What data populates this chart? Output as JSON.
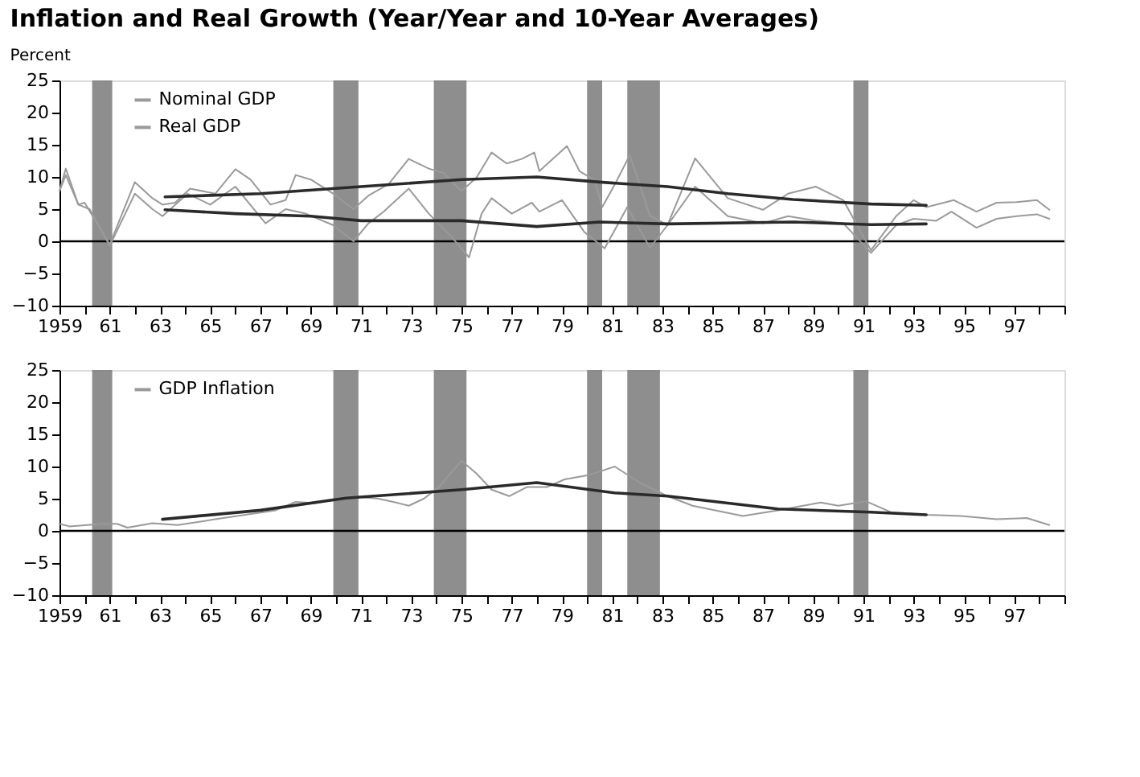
{
  "chart_data": [
    {
      "type": "line",
      "title": "Inflation and Real Growth (Year/Year and 10-Year Averages)",
      "ylabel": "Percent",
      "xlim": [
        1959,
        1999
      ],
      "xticks": [
        1959,
        {
          "value": 1960,
          "label": null
        },
        {
          "value": 1961,
          "label": "61"
        },
        {
          "value": 1962,
          "label": null
        },
        {
          "value": 1963,
          "label": "63"
        },
        {
          "value": 1964,
          "label": null
        },
        {
          "value": 1965,
          "label": "65"
        },
        {
          "value": 1966,
          "label": null
        },
        {
          "value": 1967,
          "label": "67"
        },
        {
          "value": 1968,
          "label": null
        },
        {
          "value": 1969,
          "label": "69"
        },
        {
          "value": 1970,
          "label": null
        },
        {
          "value": 1971,
          "label": "71"
        },
        {
          "value": 1972,
          "label": null
        },
        {
          "value": 1973,
          "label": "73"
        },
        {
          "value": 1974,
          "label": null
        },
        {
          "value": 1975,
          "label": "75"
        },
        {
          "value": 1976,
          "label": null
        },
        {
          "value": 1977,
          "label": "77"
        },
        {
          "value": 1978,
          "label": null
        },
        {
          "value": 1979,
          "label": "79"
        },
        {
          "value": 1980,
          "label": null
        },
        {
          "value": 1981,
          "label": "81"
        },
        {
          "value": 1982,
          "label": null
        },
        {
          "value": 1983,
          "label": "83"
        },
        {
          "value": 1984,
          "label": null
        },
        {
          "value": 1985,
          "label": "85"
        },
        {
          "value": 1986,
          "label": null
        },
        {
          "value": 1987,
          "label": "87"
        },
        {
          "value": 1988,
          "label": null
        },
        {
          "value": 1989,
          "label": "89"
        },
        {
          "value": 1990,
          "label": null
        },
        {
          "value": 1991,
          "label": "91"
        },
        {
          "value": 1992,
          "label": null
        },
        {
          "value": 1993,
          "label": "93"
        },
        {
          "value": 1994,
          "label": null
        },
        {
          "value": 1995,
          "label": "95"
        },
        {
          "value": 1996,
          "label": null
        },
        {
          "value": 1997,
          "label": "97"
        },
        {
          "value": 1998,
          "label": null
        },
        {
          "value": 1999,
          "label": null
        }
      ],
      "ylim": [
        -10,
        25
      ],
      "yticks": [
        -10,
        -5,
        0,
        5,
        10,
        15,
        20,
        25
      ],
      "grid": false,
      "legend": "top left",
      "marker": "none",
      "line_style": "solid",
      "ref_lines": [
        {
          "axis": "y",
          "value": 0,
          "color": "#000000"
        }
      ],
      "bands": [
        {
          "axis": "x",
          "from": 1960.3,
          "to": 1961.1,
          "color": "#7a7a7a"
        },
        {
          "axis": "x",
          "from": 1969.9,
          "to": 1970.9,
          "color": "#7a7a7a"
        },
        {
          "axis": "x",
          "from": 1973.9,
          "to": 1975.2,
          "color": "#7a7a7a"
        },
        {
          "axis": "x",
          "from": 1980.0,
          "to": 1980.6,
          "color": "#7a7a7a"
        },
        {
          "axis": "x",
          "from": 1981.6,
          "to": 1982.9,
          "color": "#7a7a7a"
        },
        {
          "axis": "x",
          "from": 1990.6,
          "to": 1991.2,
          "color": "#7a7a7a"
        }
      ],
      "series": [
        {
          "name": "Nominal GDP",
          "color": "#9a9a9a",
          "x": [
            1959,
            1959.25,
            1959.75,
            1960,
            1961,
            1962,
            1962.7,
            1963.1,
            1963.6,
            1964.2,
            1965.2,
            1966,
            1966.6,
            1967.4,
            1968,
            1968.4,
            1969,
            1969.9,
            1970.7,
            1971.3,
            1972.1,
            1972.9,
            1973.7,
            1974.3,
            1975,
            1975.6,
            1976.2,
            1976.8,
            1977.4,
            1977.9,
            1978.1,
            1979.2,
            1979.7,
            1980.3,
            1980.6,
            1981.1,
            1981.7,
            1982.5,
            1983.2,
            1984.3,
            1985.6,
            1987,
            1988,
            1989.1,
            1990.2,
            1991.3,
            1992.3,
            1993,
            1993.5,
            1994.6,
            1995.5,
            1996.3,
            1997.1,
            1997.9,
            1998.4
          ],
          "values": [
            7.8,
            11.3,
            5.7,
            6,
            -0.5,
            9.2,
            6.7,
            5.7,
            6,
            8.2,
            7.4,
            11.2,
            9.6,
            5.7,
            6.4,
            10.3,
            9.6,
            7.4,
            5,
            7.1,
            8.9,
            12.8,
            11.3,
            10.6,
            7.8,
            9.9,
            13.8,
            12.1,
            12.8,
            13.8,
            10.9,
            14.8,
            10.9,
            9.5,
            5.3,
            8.8,
            13.4,
            4,
            2.5,
            12.9,
            6.7,
            4.9,
            7.4,
            8.5,
            6.4,
            -1.4,
            3.9,
            6.4,
            5.3,
            6.4,
            4.6,
            6,
            6.1,
            6.4,
            4.9
          ]
        },
        {
          "name": "Real GDP",
          "color": "#9a9a9a",
          "x": [
            1959,
            1959.25,
            1959.75,
            1960.2,
            1961,
            1962,
            1962.7,
            1963.1,
            1964.1,
            1965,
            1966,
            1967.2,
            1968,
            1968.8,
            1969.9,
            1970.7,
            1971.3,
            1971.9,
            1972.9,
            1973.7,
            1974.6,
            1975.3,
            1975.8,
            1976.2,
            1977,
            1977.8,
            1978.1,
            1979,
            1979.9,
            1980.7,
            1981.6,
            1982.5,
            1983.2,
            1984.3,
            1985.6,
            1987,
            1988,
            1989.1,
            1990.2,
            1991.3,
            1992.3,
            1993,
            1993.9,
            1994.5,
            1995.5,
            1996.3,
            1997.1,
            1997.9,
            1998.4
          ],
          "values": [
            7.8,
            10.3,
            5.7,
            5,
            -0.7,
            7.4,
            5,
            3.9,
            7.4,
            5.7,
            8.5,
            2.8,
            5,
            4.3,
            2.5,
            0,
            2.8,
            4.6,
            8.2,
            4.3,
            0.7,
            -2.5,
            4.3,
            6.7,
            4.3,
            6,
            4.6,
            6.4,
            1.4,
            -1.1,
            5.3,
            -1,
            2.5,
            8.5,
            3.9,
            2.8,
            3.9,
            3.2,
            2.8,
            -1.8,
            2.5,
            3.5,
            3.2,
            4.6,
            2.1,
            3.5,
            3.9,
            4.2,
            3.5
          ]
        },
        {
          "color": "#2a2a2a",
          "x": [
            1963.2,
            1967,
            1971,
            1975,
            1978,
            1980.5,
            1983.2,
            1985.6,
            1988.2,
            1991.3,
            1993.5
          ],
          "values": [
            6.9,
            7.4,
            8.5,
            9.6,
            10,
            9.2,
            8.5,
            7.4,
            6.5,
            5.8,
            5.6
          ]
        },
        {
          "color": "#2a2a2a",
          "x": [
            1963.2,
            1966,
            1969,
            1971,
            1975,
            1978,
            1980.5,
            1983.2,
            1988.2,
            1991.3,
            1993.5
          ],
          "values": [
            4.9,
            4.3,
            3.9,
            3.2,
            3.2,
            2.3,
            3,
            2.7,
            3,
            2.6,
            2.7
          ]
        }
      ]
    },
    {
      "type": "line",
      "xlim": [
        1959,
        1999
      ],
      "xticks": [
        1959,
        {
          "value": 1960,
          "label": null
        },
        {
          "value": 1961,
          "label": "61"
        },
        {
          "value": 1962,
          "label": null
        },
        {
          "value": 1963,
          "label": "63"
        },
        {
          "value": 1964,
          "label": null
        },
        {
          "value": 1965,
          "label": "65"
        },
        {
          "value": 1966,
          "label": null
        },
        {
          "value": 1967,
          "label": "67"
        },
        {
          "value": 1968,
          "label": null
        },
        {
          "value": 1969,
          "label": "69"
        },
        {
          "value": 1970,
          "label": null
        },
        {
          "value": 1971,
          "label": "71"
        },
        {
          "value": 1972,
          "label": null
        },
        {
          "value": 1973,
          "label": "73"
        },
        {
          "value": 1974,
          "label": null
        },
        {
          "value": 1975,
          "label": "75"
        },
        {
          "value": 1976,
          "label": null
        },
        {
          "value": 1977,
          "label": "77"
        },
        {
          "value": 1978,
          "label": null
        },
        {
          "value": 1979,
          "label": "79"
        },
        {
          "value": 1980,
          "label": null
        },
        {
          "value": 1981,
          "label": "81"
        },
        {
          "value": 1982,
          "label": null
        },
        {
          "value": 1983,
          "label": "83"
        },
        {
          "value": 1984,
          "label": null
        },
        {
          "value": 1985,
          "label": "85"
        },
        {
          "value": 1986,
          "label": null
        },
        {
          "value": 1987,
          "label": "87"
        },
        {
          "value": 1988,
          "label": null
        },
        {
          "value": 1989,
          "label": "89"
        },
        {
          "value": 1990,
          "label": null
        },
        {
          "value": 1991,
          "label": "91"
        },
        {
          "value": 1992,
          "label": null
        },
        {
          "value": 1993,
          "label": "93"
        },
        {
          "value": 1994,
          "label": null
        },
        {
          "value": 1995,
          "label": "95"
        },
        {
          "value": 1996,
          "label": null
        },
        {
          "value": 1997,
          "label": "97"
        },
        {
          "value": 1998,
          "label": null
        },
        {
          "value": 1999,
          "label": null
        }
      ],
      "ylim": [
        -10,
        25
      ],
      "yticks": [
        -10,
        -5,
        0,
        5,
        10,
        15,
        20,
        25
      ],
      "grid": false,
      "legend": "top left",
      "marker": "none",
      "line_style": "solid",
      "ref_lines": [
        {
          "axis": "y",
          "value": 0,
          "color": "#000000"
        }
      ],
      "bands": [
        {
          "axis": "x",
          "from": 1960.3,
          "to": 1961.1,
          "color": "#7a7a7a"
        },
        {
          "axis": "x",
          "from": 1969.9,
          "to": 1970.9,
          "color": "#7a7a7a"
        },
        {
          "axis": "x",
          "from": 1973.9,
          "to": 1975.2,
          "color": "#7a7a7a"
        },
        {
          "axis": "x",
          "from": 1980.0,
          "to": 1980.6,
          "color": "#7a7a7a"
        },
        {
          "axis": "x",
          "from": 1981.6,
          "to": 1982.9,
          "color": "#7a7a7a"
        },
        {
          "axis": "x",
          "from": 1990.6,
          "to": 1991.2,
          "color": "#7a7a7a"
        }
      ],
      "series": [
        {
          "name": "GDP Inflation",
          "color": "#9a9a9a",
          "x": [
            1959,
            1959.4,
            1960.7,
            1961.3,
            1961.7,
            1962.7,
            1963.7,
            1965.2,
            1966.4,
            1967.6,
            1968.4,
            1969.2,
            1970.5,
            1971.7,
            1972.5,
            1972.9,
            1973.5,
            1974.1,
            1975,
            1975.6,
            1976.2,
            1976.9,
            1977.6,
            1978.4,
            1979.1,
            1980.1,
            1981.1,
            1982.1,
            1983.2,
            1984.2,
            1986.2,
            1987.6,
            1989.3,
            1990,
            1991.1,
            1992.1,
            1993.5,
            1994.9,
            1996.3,
            1997.5,
            1998.4
          ],
          "values": [
            1.1,
            0.7,
            1.1,
            1.1,
            0.5,
            1.2,
            0.9,
            1.8,
            2.5,
            3.2,
            4.5,
            4.3,
            5.4,
            5,
            4.3,
            3.9,
            5,
            6.8,
            10.9,
            8.9,
            6.4,
            5.4,
            6.8,
            6.8,
            8,
            8.7,
            10,
            7.5,
            5.4,
            3.9,
            2.3,
            3.2,
            4.4,
            3.9,
            4.6,
            2.9,
            2.5,
            2.3,
            1.8,
            2,
            0.9
          ]
        },
        {
          "color": "#2a2a2a",
          "x": [
            1963.1,
            1967,
            1970.4,
            1975,
            1978,
            1981.1,
            1983.2,
            1987.6,
            1991.3,
            1993.5
          ],
          "values": [
            1.8,
            3.2,
            5.1,
            6.4,
            7.5,
            5.9,
            5.4,
            3.4,
            2.9,
            2.5
          ]
        }
      ]
    }
  ]
}
